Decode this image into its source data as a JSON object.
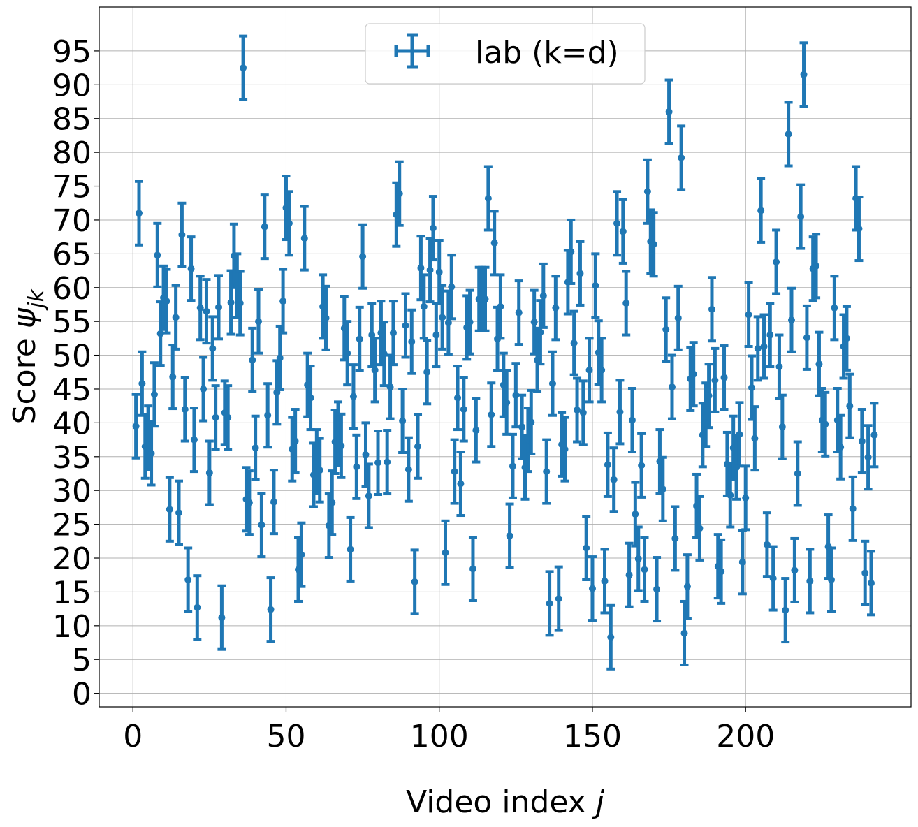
{
  "chart_data": {
    "type": "scatter",
    "xlabel": "Video index j",
    "ylabel": "Score ψjk",
    "xlim": [
      -11,
      254
    ],
    "ylim": [
      -2,
      101.5
    ],
    "xticks": [
      0,
      50,
      100,
      150,
      200
    ],
    "yticks": [
      0,
      5,
      10,
      15,
      20,
      25,
      30,
      35,
      40,
      45,
      50,
      55,
      60,
      65,
      70,
      75,
      80,
      85,
      90,
      95
    ],
    "grid": true,
    "legend_position": "top-center",
    "error": 4.7,
    "series": [
      {
        "name": "lab (k=d)",
        "color": "#1f77b4",
        "points": [
          [
            1,
            39.5
          ],
          [
            2,
            71
          ],
          [
            3,
            45.8
          ],
          [
            4,
            36.5
          ],
          [
            5,
            37.8
          ],
          [
            6,
            35.5
          ],
          [
            7,
            44.2
          ],
          [
            8,
            64.8
          ],
          [
            9,
            53.2
          ],
          [
            10,
            58.5
          ],
          [
            11,
            58
          ],
          [
            12,
            27.2
          ],
          [
            13,
            46.8
          ],
          [
            14,
            55.6
          ],
          [
            15,
            26.7
          ],
          [
            16,
            67.8
          ],
          [
            17,
            42
          ],
          [
            18,
            16.8
          ],
          [
            19,
            62.8
          ],
          [
            20,
            37.5
          ],
          [
            21,
            12.7
          ],
          [
            22,
            57
          ],
          [
            23,
            45
          ],
          [
            24,
            56.5
          ],
          [
            25,
            32.6
          ],
          [
            26,
            51
          ],
          [
            27,
            40.8
          ],
          [
            28,
            57.1
          ],
          [
            29,
            11.2
          ],
          [
            30,
            41.5
          ],
          [
            31,
            40.8
          ],
          [
            32,
            57.8
          ],
          [
            33,
            64.7
          ],
          [
            34,
            60.3
          ],
          [
            35,
            57.7
          ],
          [
            36,
            92.5
          ],
          [
            37,
            28.7
          ],
          [
            38,
            28.2
          ],
          [
            39,
            49.3
          ],
          [
            40,
            36.3
          ],
          [
            41,
            55
          ],
          [
            42,
            24.9
          ],
          [
            43,
            69
          ],
          [
            44,
            41.1
          ],
          [
            45,
            12.4
          ],
          [
            46,
            28.3
          ],
          [
            47,
            44.5
          ],
          [
            48,
            49.6
          ],
          [
            49,
            58
          ],
          [
            50,
            71.8
          ],
          [
            51,
            69.5
          ],
          [
            52,
            36.1
          ],
          [
            53,
            37.3
          ],
          [
            54,
            18.3
          ],
          [
            55,
            20.5
          ],
          [
            56,
            67.3
          ],
          [
            57,
            45.6
          ],
          [
            58,
            43.7
          ],
          [
            59,
            32.3
          ],
          [
            60,
            34.3
          ],
          [
            61,
            33
          ],
          [
            62,
            57.2
          ],
          [
            63,
            55.5
          ],
          [
            64,
            24.8
          ],
          [
            65,
            28.2
          ],
          [
            66,
            37.2
          ],
          [
            67,
            38.4
          ],
          [
            68,
            36.6
          ],
          [
            69,
            54
          ],
          [
            70,
            50.3
          ],
          [
            71,
            21.3
          ],
          [
            72,
            43.9
          ],
          [
            73,
            33.5
          ],
          [
            74,
            52.4
          ],
          [
            75,
            64.6
          ],
          [
            76,
            35.3
          ],
          [
            77,
            29.2
          ],
          [
            78,
            53
          ],
          [
            79,
            47.8
          ],
          [
            80,
            34.1
          ],
          [
            81,
            53.3
          ],
          [
            82,
            50.2
          ],
          [
            83,
            34.2
          ],
          [
            84,
            45.3
          ],
          [
            85,
            53.3
          ],
          [
            86,
            70.8
          ],
          [
            87,
            73.9
          ],
          [
            88,
            40.3
          ],
          [
            89,
            54.4
          ],
          [
            90,
            33.1
          ],
          [
            91,
            52
          ],
          [
            92,
            16.5
          ],
          [
            93,
            36.5
          ],
          [
            94,
            62.9
          ],
          [
            95,
            57.2
          ],
          [
            96,
            47.5
          ],
          [
            97,
            62.6
          ],
          [
            98,
            68.8
          ],
          [
            99,
            53
          ],
          [
            100,
            62.3
          ],
          [
            101,
            55.6
          ],
          [
            102,
            20.8
          ],
          [
            103,
            54.8
          ],
          [
            104,
            60.1
          ],
          [
            105,
            32.8
          ],
          [
            106,
            43.7
          ],
          [
            107,
            31
          ],
          [
            108,
            42
          ],
          [
            109,
            54.1
          ],
          [
            110,
            54.9
          ],
          [
            111,
            18.4
          ],
          [
            112,
            38.9
          ],
          [
            113,
            58.3
          ],
          [
            114,
            58.3
          ],
          [
            115,
            58.3
          ],
          [
            116,
            73.2
          ],
          [
            117,
            41.2
          ],
          [
            118,
            66.6
          ],
          [
            119,
            52.4
          ],
          [
            120,
            57.2
          ],
          [
            121,
            45.6
          ],
          [
            122,
            43
          ],
          [
            123,
            23.3
          ],
          [
            124,
            33.6
          ],
          [
            125,
            44.1
          ],
          [
            126,
            56.3
          ],
          [
            127,
            39.4
          ],
          [
            128,
            33.4
          ],
          [
            129,
            37.5
          ],
          [
            130,
            40.1
          ],
          [
            131,
            54.9
          ],
          [
            132,
            49.3
          ],
          [
            133,
            53.4
          ],
          [
            134,
            58.8
          ],
          [
            135,
            32.8
          ],
          [
            136,
            13.3
          ],
          [
            137,
            45.8
          ],
          [
            138,
            57
          ],
          [
            139,
            14
          ],
          [
            140,
            36.8
          ],
          [
            141,
            36.1
          ],
          [
            142,
            60.8
          ],
          [
            143,
            65.3
          ],
          [
            144,
            51.8
          ],
          [
            145,
            41.9
          ],
          [
            146,
            62.1
          ],
          [
            147,
            41.5
          ],
          [
            148,
            21.5
          ],
          [
            149,
            47.8
          ],
          [
            150,
            15.5
          ],
          [
            151,
            60.3
          ],
          [
            152,
            50.4
          ],
          [
            153,
            47.8
          ],
          [
            154,
            16.6
          ],
          [
            155,
            33.8
          ],
          [
            156,
            8.3
          ],
          [
            157,
            31.6
          ],
          [
            158,
            69.5
          ],
          [
            159,
            41.6
          ],
          [
            160,
            68.3
          ],
          [
            161,
            57.7
          ],
          [
            162,
            17.5
          ],
          [
            163,
            40.4
          ],
          [
            164,
            26.5
          ],
          [
            165,
            19.9
          ],
          [
            166,
            33.7
          ],
          [
            167,
            18.3
          ],
          [
            168,
            74.2
          ],
          [
            169,
            66.8
          ],
          [
            170,
            66.4
          ],
          [
            171,
            15.4
          ],
          [
            172,
            34.3
          ],
          [
            173,
            30.2
          ],
          [
            174,
            53.8
          ],
          [
            175,
            86
          ],
          [
            176,
            45.3
          ],
          [
            177,
            22.9
          ],
          [
            178,
            55.5
          ],
          [
            179,
            79.2
          ],
          [
            180,
            8.9
          ],
          [
            181,
            15.8
          ],
          [
            182,
            46.5
          ],
          [
            183,
            47.2
          ],
          [
            184,
            27.7
          ],
          [
            185,
            24.4
          ],
          [
            186,
            38.2
          ],
          [
            187,
            41.2
          ],
          [
            188,
            44
          ],
          [
            189,
            56.8
          ],
          [
            190,
            46.3
          ],
          [
            191,
            18.8
          ],
          [
            192,
            18
          ],
          [
            193,
            46.7
          ],
          [
            194,
            33.9
          ],
          [
            195,
            29.3
          ],
          [
            196,
            36.3
          ],
          [
            197,
            33.4
          ],
          [
            198,
            38.3
          ],
          [
            199,
            19.4
          ],
          [
            200,
            28.9
          ],
          [
            201,
            56
          ],
          [
            202,
            45.2
          ],
          [
            203,
            37.7
          ],
          [
            204,
            51
          ],
          [
            205,
            71.4
          ],
          [
            206,
            51.3
          ],
          [
            207,
            22
          ],
          [
            208,
            53
          ],
          [
            209,
            17
          ],
          [
            210,
            63.8
          ],
          [
            211,
            48.3
          ],
          [
            212,
            39.4
          ],
          [
            213,
            12.3
          ],
          [
            214,
            82.7
          ],
          [
            215,
            55.2
          ],
          [
            216,
            18.2
          ],
          [
            217,
            32.5
          ],
          [
            218,
            70.5
          ],
          [
            219,
            91.5
          ],
          [
            220,
            52.6
          ],
          [
            221,
            16.6
          ],
          [
            222,
            62.8
          ],
          [
            223,
            63.2
          ],
          [
            224,
            48.7
          ],
          [
            225,
            40.4
          ],
          [
            226,
            39.8
          ],
          [
            227,
            21.7
          ],
          [
            228,
            16.8
          ],
          [
            229,
            57
          ],
          [
            230,
            40.4
          ],
          [
            231,
            36.4
          ],
          [
            232,
            51.3
          ],
          [
            233,
            52.5
          ],
          [
            234,
            42.5
          ],
          [
            235,
            27.3
          ],
          [
            236,
            73.2
          ],
          [
            237,
            68.7
          ],
          [
            238,
            37.3
          ],
          [
            239,
            17.8
          ],
          [
            240,
            34.9
          ],
          [
            241,
            16.3
          ],
          [
            242,
            38.2
          ]
        ]
      }
    ]
  }
}
